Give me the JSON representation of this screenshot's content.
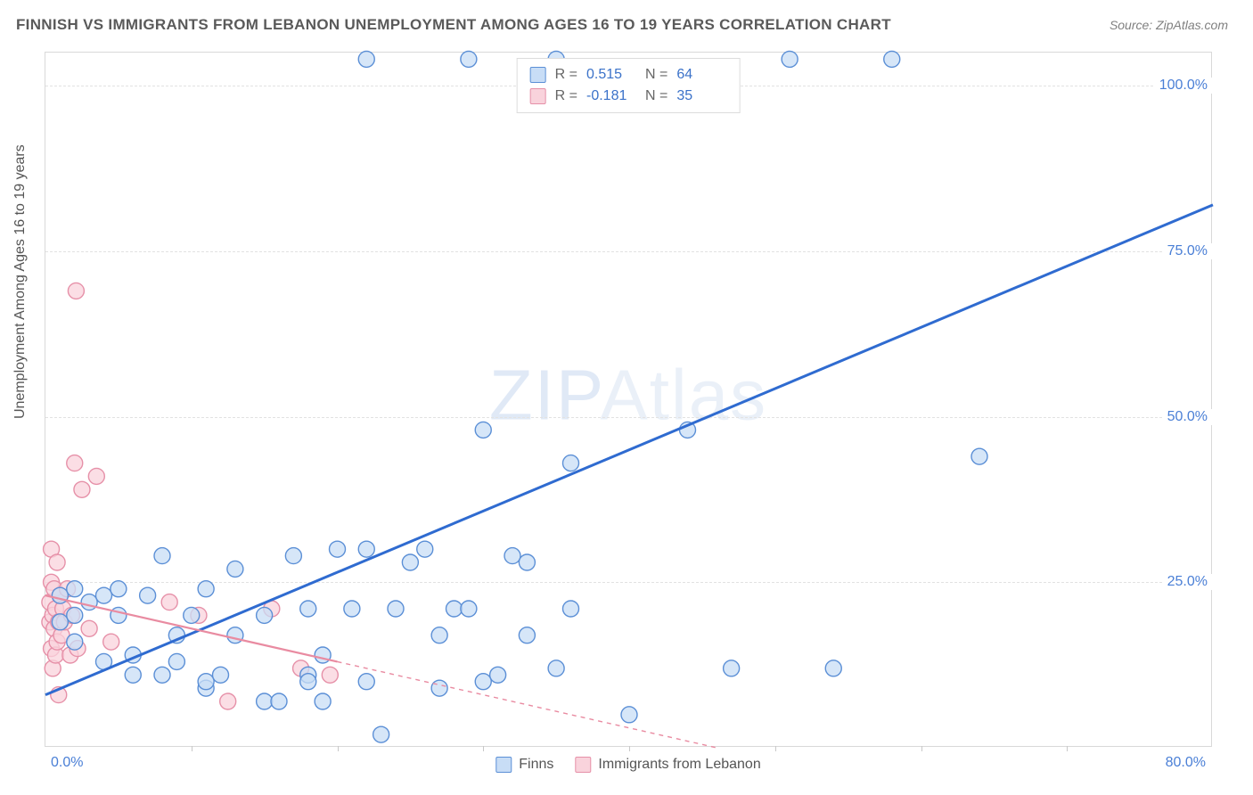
{
  "header": {
    "title": "FINNISH VS IMMIGRANTS FROM LEBANON UNEMPLOYMENT AMONG AGES 16 TO 19 YEARS CORRELATION CHART",
    "source_prefix": "Source: ",
    "source_name": "ZipAtlas.com"
  },
  "chart": {
    "type": "scatter-with-regression",
    "ylabel": "Unemployment Among Ages 16 to 19 years",
    "watermark_a": "ZIP",
    "watermark_b": "Atlas",
    "xlim": [
      0,
      80
    ],
    "ylim": [
      0,
      105
    ],
    "yticks": [
      25,
      50,
      75,
      100
    ],
    "ytick_labels": [
      "25.0%",
      "50.0%",
      "75.0%",
      "100.0%"
    ],
    "xtick_left": "0.0%",
    "xtick_right": "80.0%",
    "x_minor_ticks": [
      10,
      20,
      30,
      40,
      50,
      60,
      70
    ],
    "background_color": "#ffffff",
    "grid_color": "#e2e2e2",
    "series": {
      "finns": {
        "label": "Finns",
        "color_fill": "#c8ddf6",
        "color_stroke": "#5b8fd6",
        "line_color": "#2f6bd0",
        "marker_radius": 9,
        "R": "0.515",
        "N": "64",
        "regression": {
          "x1": 0,
          "y1": 8,
          "x2": 80,
          "y2": 82
        },
        "points": [
          [
            22,
            104
          ],
          [
            29,
            104
          ],
          [
            35,
            104
          ],
          [
            51,
            104
          ],
          [
            58,
            104
          ],
          [
            1,
            19
          ],
          [
            1,
            23
          ],
          [
            2,
            16
          ],
          [
            2,
            20
          ],
          [
            2,
            24
          ],
          [
            3,
            22
          ],
          [
            4,
            13
          ],
          [
            4,
            23
          ],
          [
            5,
            20
          ],
          [
            5,
            24
          ],
          [
            6,
            11
          ],
          [
            6,
            14
          ],
          [
            7,
            23
          ],
          [
            8,
            11
          ],
          [
            8,
            29
          ],
          [
            9,
            13
          ],
          [
            9,
            17
          ],
          [
            10,
            20
          ],
          [
            11,
            9
          ],
          [
            11,
            10
          ],
          [
            11,
            24
          ],
          [
            12,
            11
          ],
          [
            13,
            17
          ],
          [
            13,
            27
          ],
          [
            15,
            7
          ],
          [
            15,
            20
          ],
          [
            16,
            7
          ],
          [
            17,
            29
          ],
          [
            18,
            11
          ],
          [
            18,
            10
          ],
          [
            18,
            21
          ],
          [
            19,
            14
          ],
          [
            19,
            7
          ],
          [
            20,
            30
          ],
          [
            21,
            21
          ],
          [
            22,
            30
          ],
          [
            22,
            10
          ],
          [
            23,
            2
          ],
          [
            24,
            21
          ],
          [
            25,
            28
          ],
          [
            26,
            30
          ],
          [
            27,
            17
          ],
          [
            27,
            9
          ],
          [
            28,
            21
          ],
          [
            29,
            21
          ],
          [
            30,
            48
          ],
          [
            30,
            10
          ],
          [
            31,
            11
          ],
          [
            32,
            29
          ],
          [
            33,
            17
          ],
          [
            33,
            28
          ],
          [
            35,
            12
          ],
          [
            36,
            43
          ],
          [
            40,
            5
          ],
          [
            44,
            48
          ],
          [
            47,
            12
          ],
          [
            54,
            12
          ],
          [
            64,
            44
          ],
          [
            36,
            21
          ]
        ]
      },
      "lebanon": {
        "label": "Immigrants from Lebanon",
        "color_fill": "#f9d3dc",
        "color_stroke": "#e690a8",
        "line_color": "#e98ba1",
        "marker_radius": 9,
        "R": "-0.181",
        "N": "35",
        "regression_solid": {
          "x1": 0,
          "y1": 23,
          "x2": 20,
          "y2": 13
        },
        "regression_dashed": {
          "x1": 20,
          "y1": 13,
          "x2": 46,
          "y2": 0
        },
        "points": [
          [
            0.3,
            19
          ],
          [
            0.3,
            22
          ],
          [
            0.4,
            15
          ],
          [
            0.4,
            25
          ],
          [
            0.4,
            30
          ],
          [
            0.5,
            12
          ],
          [
            0.5,
            20
          ],
          [
            0.6,
            18
          ],
          [
            0.6,
            24
          ],
          [
            0.7,
            14
          ],
          [
            0.7,
            21
          ],
          [
            0.8,
            16
          ],
          [
            0.8,
            28
          ],
          [
            0.9,
            8
          ],
          [
            0.9,
            19
          ],
          [
            1.0,
            23
          ],
          [
            1.1,
            17
          ],
          [
            1.2,
            21
          ],
          [
            1.3,
            19
          ],
          [
            1.5,
            24
          ],
          [
            1.7,
            14
          ],
          [
            1.8,
            20
          ],
          [
            2.0,
            43
          ],
          [
            2.2,
            15
          ],
          [
            2.5,
            39
          ],
          [
            2.1,
            69
          ],
          [
            3.0,
            18
          ],
          [
            3.5,
            41
          ],
          [
            4.5,
            16
          ],
          [
            8.5,
            22
          ],
          [
            10.5,
            20
          ],
          [
            12.5,
            7
          ],
          [
            15.5,
            21
          ],
          [
            17.5,
            12
          ],
          [
            19.5,
            11
          ]
        ]
      }
    }
  },
  "legend_top": {
    "r_label": "R =",
    "n_label": "N ="
  }
}
